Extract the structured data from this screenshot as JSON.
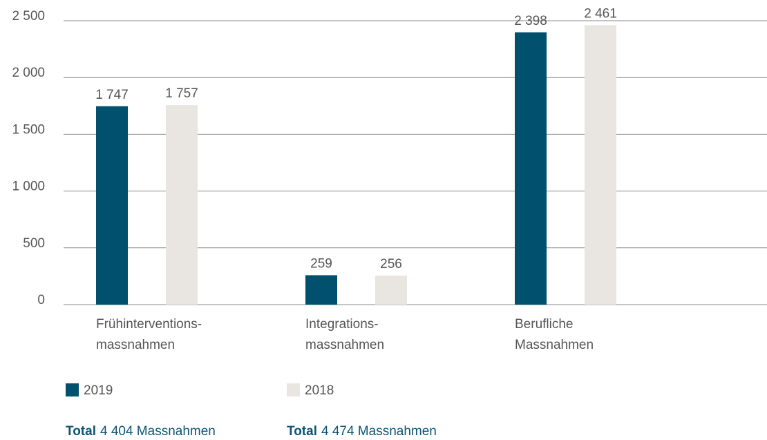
{
  "chart_data": {
    "type": "bar",
    "categories": [
      [
        "Frühinterventions-",
        "massnahmen"
      ],
      [
        "Integrations-",
        "massnahmen"
      ],
      [
        "Berufliche",
        "Massnahmen"
      ]
    ],
    "series": [
      {
        "name": "2019",
        "color": "#00506e",
        "values": [
          1747,
          259,
          2398
        ],
        "value_labels": [
          "1 747",
          "259",
          "2 398"
        ]
      },
      {
        "name": "2018",
        "color": "#e9e5e1",
        "values": [
          1757,
          256,
          2461
        ],
        "value_labels": [
          "1 757",
          "256",
          "2 461"
        ]
      }
    ],
    "ylim": [
      0,
      2500
    ],
    "yticks": [
      0,
      500,
      {
        "value": 1000,
        "label": "1 000"
      },
      {
        "value": 1500,
        "label": "1 500"
      },
      {
        "value": 2000,
        "label": "2 000"
      },
      {
        "value": 2500,
        "label": "2 500"
      }
    ],
    "grid": true,
    "totals": [
      {
        "label": "Total",
        "text": "4 404 Massnahmen"
      },
      {
        "label": "Total",
        "text": "4 474 Massnahmen"
      }
    ]
  }
}
